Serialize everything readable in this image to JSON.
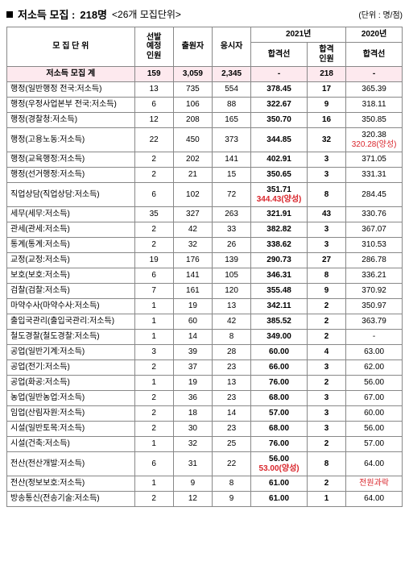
{
  "header": {
    "title_prefix": "저소득 모집 :",
    "count": "218명",
    "subtitle": "<26개 모집단위>",
    "unit": "(단위 : 명/점)"
  },
  "columns": {
    "unit_name": "모 집 단 위",
    "selection": "선발\n예정\n인원",
    "applicants": "출원자",
    "examinees": "응시자",
    "year2021": "2021년",
    "cutoff": "합격선",
    "passed": "합격\n인원",
    "year2020": "2020년",
    "cutoff2020": "합격선"
  },
  "summary": {
    "label": "저소득 모집 계",
    "selection": "159",
    "applicants": "3,059",
    "examinees": "2,345",
    "cutoff2021": "-",
    "passed": "218",
    "cutoff2020": "-"
  },
  "rows": [
    {
      "name": "행정(일반행정 전국:저소득)",
      "sel": "13",
      "app": "735",
      "exam": "554",
      "cut21": "378.45",
      "cut21_red": "",
      "pass": "17",
      "cut20": "365.39",
      "cut20_red": ""
    },
    {
      "name": "행정(우정사업본부 전국:저소득)",
      "sel": "6",
      "app": "106",
      "exam": "88",
      "cut21": "322.67",
      "cut21_red": "",
      "pass": "9",
      "cut20": "318.11",
      "cut20_red": ""
    },
    {
      "name": "행정(경찰청:저소득)",
      "sel": "12",
      "app": "208",
      "exam": "165",
      "cut21": "350.70",
      "cut21_red": "",
      "pass": "16",
      "cut20": "350.85",
      "cut20_red": ""
    },
    {
      "name": "행정(고용노동:저소득)",
      "sel": "22",
      "app": "450",
      "exam": "373",
      "cut21": "344.85",
      "cut21_red": "",
      "pass": "32",
      "cut20": "320.38",
      "cut20_red": "320.28(양성)"
    },
    {
      "name": "행정(교육행정:저소득)",
      "sel": "2",
      "app": "202",
      "exam": "141",
      "cut21": "402.91",
      "cut21_red": "",
      "pass": "3",
      "cut20": "371.05",
      "cut20_red": ""
    },
    {
      "name": "행정(선거행정:저소득)",
      "sel": "2",
      "app": "21",
      "exam": "15",
      "cut21": "350.65",
      "cut21_red": "",
      "pass": "3",
      "cut20": "331.31",
      "cut20_red": ""
    },
    {
      "name": "직업상담(직업상담:저소득)",
      "sel": "6",
      "app": "102",
      "exam": "72",
      "cut21": "351.71",
      "cut21_red": "344.43(양성)",
      "pass": "8",
      "cut20": "284.45",
      "cut20_red": ""
    },
    {
      "name": "세무(세무:저소득)",
      "sel": "35",
      "app": "327",
      "exam": "263",
      "cut21": "321.91",
      "cut21_red": "",
      "pass": "43",
      "cut20": "330.76",
      "cut20_red": ""
    },
    {
      "name": "관세(관세:저소득)",
      "sel": "2",
      "app": "42",
      "exam": "33",
      "cut21": "382.82",
      "cut21_red": "",
      "pass": "3",
      "cut20": "367.07",
      "cut20_red": ""
    },
    {
      "name": "통계(통계:저소득)",
      "sel": "2",
      "app": "32",
      "exam": "26",
      "cut21": "338.62",
      "cut21_red": "",
      "pass": "3",
      "cut20": "310.53",
      "cut20_red": ""
    },
    {
      "name": "교정(교정:저소득)",
      "sel": "19",
      "app": "176",
      "exam": "139",
      "cut21": "290.73",
      "cut21_red": "",
      "pass": "27",
      "cut20": "286.78",
      "cut20_red": ""
    },
    {
      "name": "보호(보호:저소득)",
      "sel": "6",
      "app": "141",
      "exam": "105",
      "cut21": "346.31",
      "cut21_red": "",
      "pass": "8",
      "cut20": "336.21",
      "cut20_red": ""
    },
    {
      "name": "검찰(검찰:저소득)",
      "sel": "7",
      "app": "161",
      "exam": "120",
      "cut21": "355.48",
      "cut21_red": "",
      "pass": "9",
      "cut20": "370.92",
      "cut20_red": ""
    },
    {
      "name": "마약수사(마약수사:저소득)",
      "sel": "1",
      "app": "19",
      "exam": "13",
      "cut21": "342.11",
      "cut21_red": "",
      "pass": "2",
      "cut20": "350.97",
      "cut20_red": ""
    },
    {
      "name": "출입국관리(출입국관리:저소득)",
      "sel": "1",
      "app": "60",
      "exam": "42",
      "cut21": "385.52",
      "cut21_red": "",
      "pass": "2",
      "cut20": "363.79",
      "cut20_red": ""
    },
    {
      "name": "철도경찰(철도경찰:저소득)",
      "sel": "1",
      "app": "14",
      "exam": "8",
      "cut21": "349.00",
      "cut21_red": "",
      "pass": "2",
      "cut20": "-",
      "cut20_red": ""
    },
    {
      "name": "공업(일반기계:저소득)",
      "sel": "3",
      "app": "39",
      "exam": "28",
      "cut21": "60.00",
      "cut21_red": "",
      "pass": "4",
      "cut20": "63.00",
      "cut20_red": ""
    },
    {
      "name": "공업(전기:저소득)",
      "sel": "2",
      "app": "37",
      "exam": "23",
      "cut21": "66.00",
      "cut21_red": "",
      "pass": "3",
      "cut20": "62.00",
      "cut20_red": ""
    },
    {
      "name": "공업(화공:저소득)",
      "sel": "1",
      "app": "19",
      "exam": "13",
      "cut21": "76.00",
      "cut21_red": "",
      "pass": "2",
      "cut20": "56.00",
      "cut20_red": ""
    },
    {
      "name": "농업(일반농업:저소득)",
      "sel": "2",
      "app": "36",
      "exam": "23",
      "cut21": "68.00",
      "cut21_red": "",
      "pass": "3",
      "cut20": "67.00",
      "cut20_red": ""
    },
    {
      "name": "임업(산림자원:저소득)",
      "sel": "2",
      "app": "18",
      "exam": "14",
      "cut21": "57.00",
      "cut21_red": "",
      "pass": "3",
      "cut20": "60.00",
      "cut20_red": ""
    },
    {
      "name": "시설(일반토목:저소득)",
      "sel": "2",
      "app": "30",
      "exam": "23",
      "cut21": "68.00",
      "cut21_red": "",
      "pass": "3",
      "cut20": "56.00",
      "cut20_red": ""
    },
    {
      "name": "시설(건축:저소득)",
      "sel": "1",
      "app": "32",
      "exam": "25",
      "cut21": "76.00",
      "cut21_red": "",
      "pass": "2",
      "cut20": "57.00",
      "cut20_red": ""
    },
    {
      "name": "전산(전산개발:저소득)",
      "sel": "6",
      "app": "31",
      "exam": "22",
      "cut21": "56.00",
      "cut21_red": "53.00(양성)",
      "pass": "8",
      "cut20": "64.00",
      "cut20_red": ""
    },
    {
      "name": "전산(정보보호:저소득)",
      "sel": "1",
      "app": "9",
      "exam": "8",
      "cut21": "61.00",
      "cut21_red": "",
      "pass": "2",
      "cut20": "",
      "cut20_red": "전원과락"
    },
    {
      "name": "방송통신(전송기술:저소득)",
      "sel": "2",
      "app": "12",
      "exam": "9",
      "cut21": "61.00",
      "cut21_red": "",
      "pass": "1",
      "cut20": "64.00",
      "cut20_red": ""
    }
  ]
}
